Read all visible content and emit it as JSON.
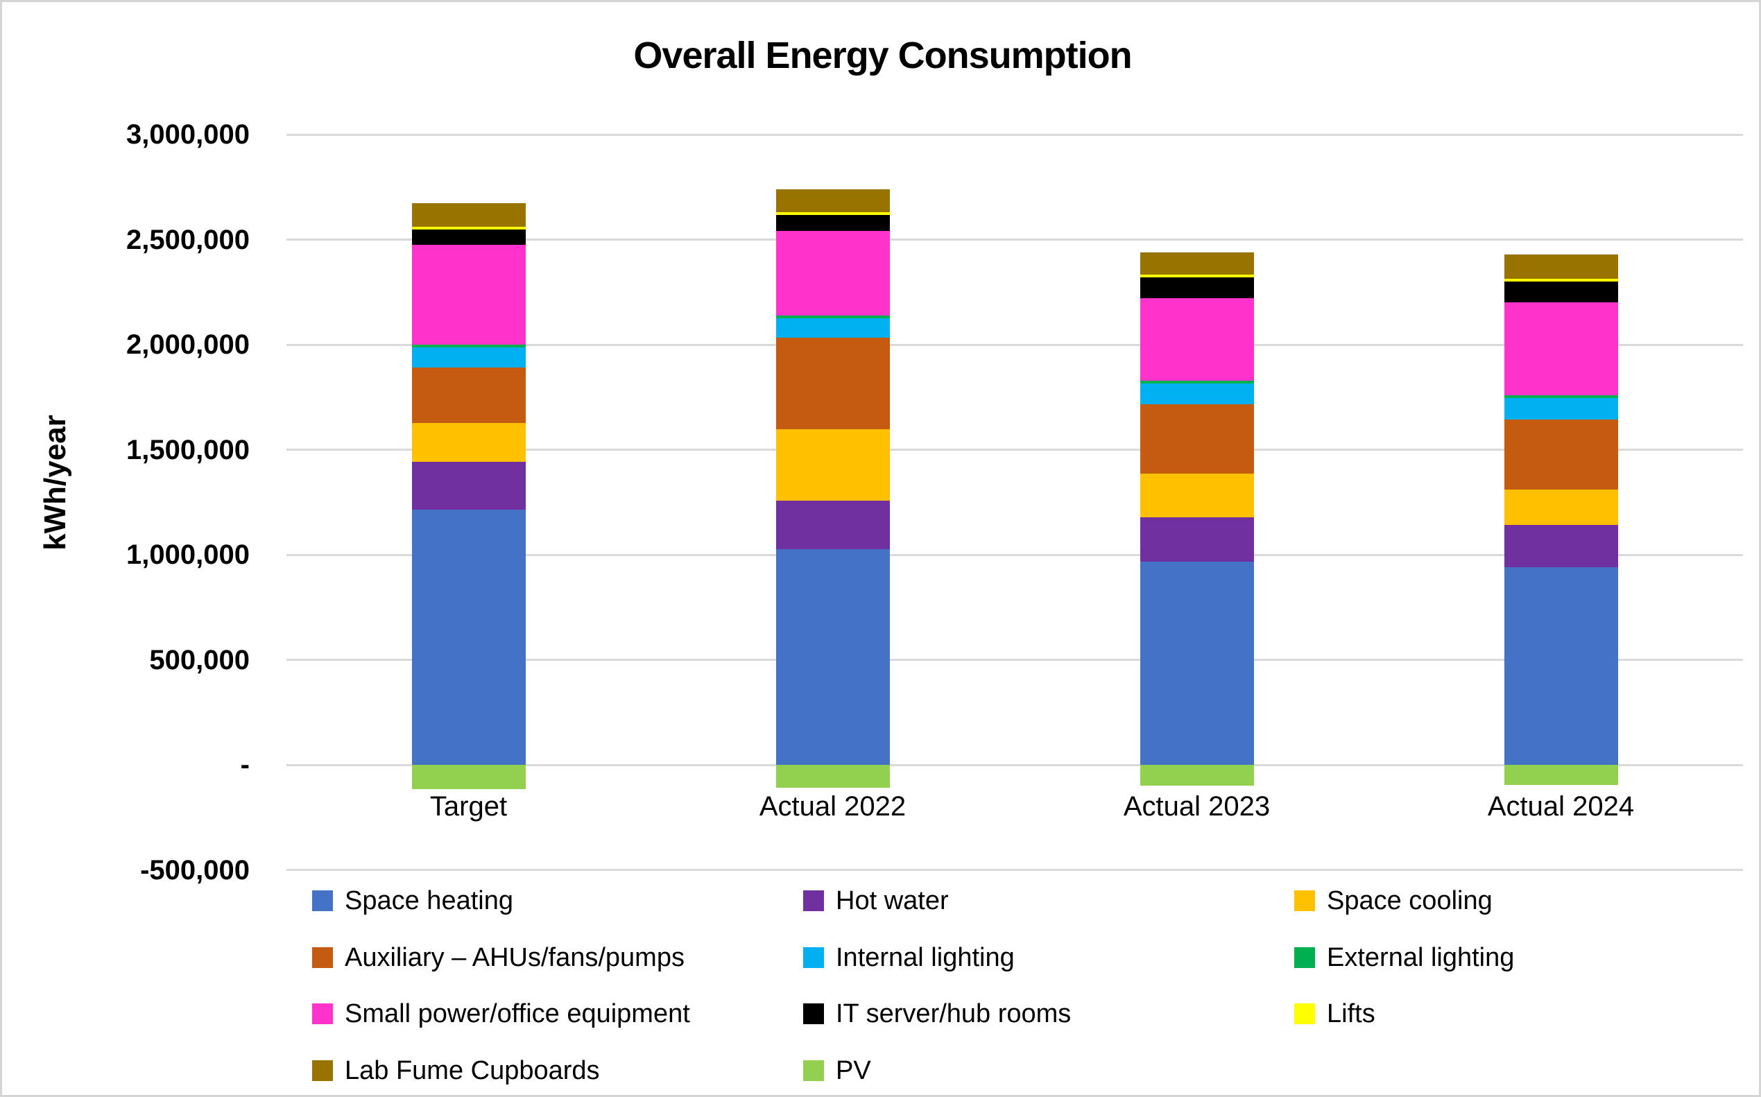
{
  "title": "Overall Energy Consumption",
  "y_axis": {
    "label": "kWh/year",
    "ticks": [
      {
        "value": 3000000,
        "label": "3,000,000"
      },
      {
        "value": 2500000,
        "label": "2,500,000"
      },
      {
        "value": 2000000,
        "label": "2,000,000"
      },
      {
        "value": 1500000,
        "label": "1,500,000"
      },
      {
        "value": 1000000,
        "label": "1,000,000"
      },
      {
        "value": 500000,
        "label": "500,000"
      },
      {
        "value": 0,
        "label": "-"
      },
      {
        "value": -500000,
        "label": "-500,000"
      }
    ]
  },
  "chart_data": {
    "type": "bar",
    "stacked": true,
    "title": "Overall Energy Consumption",
    "xlabel": "",
    "ylabel": "kWh/year",
    "ylim": [
      -500000,
      3000000
    ],
    "gridline_step": 500000,
    "grid": true,
    "gridline_color": "#d9d9d9",
    "legend_position": "bottom",
    "categories": [
      "Target",
      "Actual 2022",
      "Actual 2023",
      "Actual 2024"
    ],
    "series": [
      {
        "name": "Space heating",
        "color": "#4472C4",
        "values": [
          1215000,
          1025000,
          968000,
          940000
        ]
      },
      {
        "name": "Hot water",
        "color": "#7030A0",
        "values": [
          228000,
          233000,
          210000,
          203000
        ]
      },
      {
        "name": "Space cooling",
        "color": "#FFC000",
        "values": [
          183000,
          341000,
          209000,
          167000
        ]
      },
      {
        "name": "Auxiliary – AHUs/fans/pumps",
        "color": "#C55A11",
        "values": [
          266000,
          434000,
          330000,
          332000
        ]
      },
      {
        "name": "Internal lighting",
        "color": "#00B0F0",
        "values": [
          94000,
          91000,
          99000,
          103000
        ]
      },
      {
        "name": "External lighting",
        "color": "#00B050",
        "values": [
          14000,
          13000,
          13000,
          14000
        ]
      },
      {
        "name": "Small power/office equipment",
        "color": "#FF33CC",
        "values": [
          475000,
          405000,
          392000,
          443000
        ]
      },
      {
        "name": "IT server/hub rooms",
        "color": "#000000",
        "values": [
          74000,
          76000,
          99000,
          99000
        ]
      },
      {
        "name": "Lifts",
        "color": "#FFFF00",
        "values": [
          11000,
          11000,
          12000,
          13000
        ]
      },
      {
        "name": "Lab Fume Cupboards",
        "color": "#997300",
        "values": [
          112000,
          111000,
          108000,
          114000
        ]
      },
      {
        "name": "PV",
        "color": "#92D050",
        "values": [
          -115000,
          -108000,
          -100000,
          -97000
        ]
      }
    ]
  },
  "legend": {
    "columns": 3
  }
}
